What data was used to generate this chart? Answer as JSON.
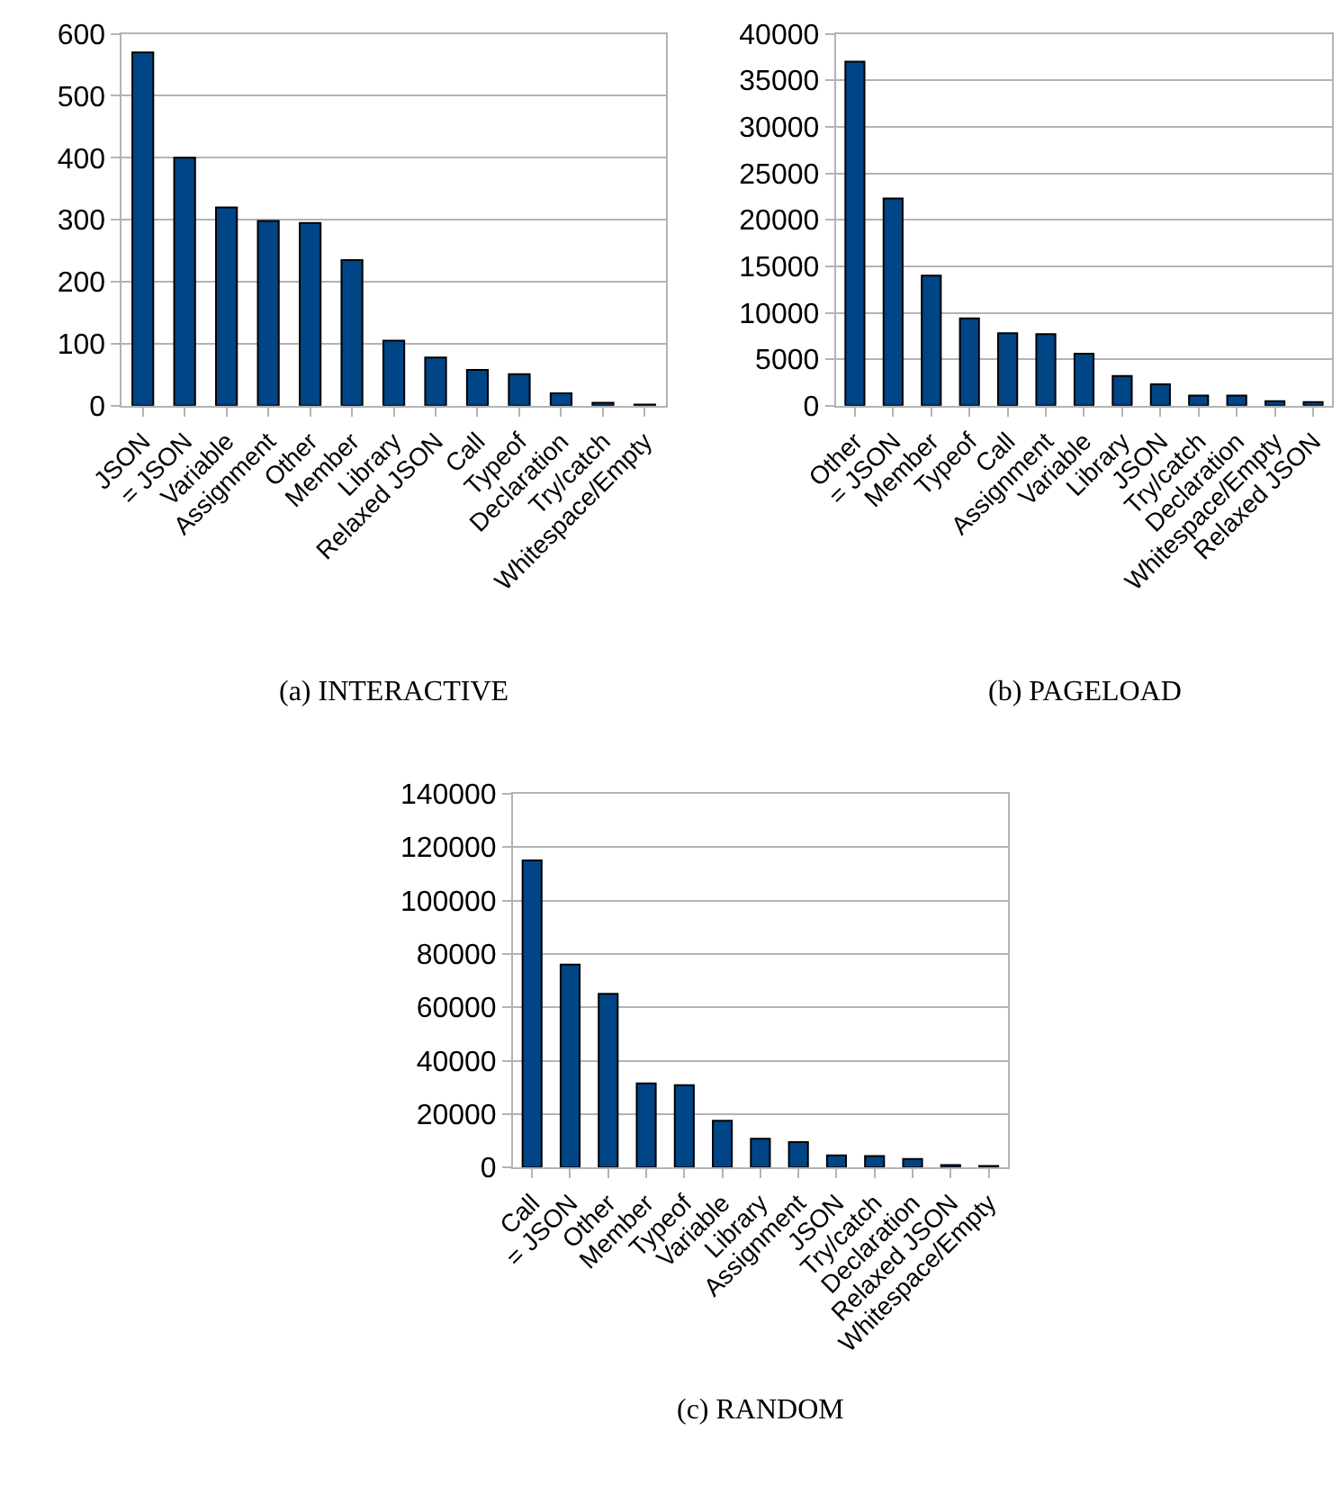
{
  "chart_data": [
    {
      "type": "bar",
      "title": "(a) INTERACTIVE",
      "categories": [
        "JSON",
        "= JSON",
        "Variable",
        "Assignment",
        "Other",
        "Member",
        "Library",
        "Relaxed JSON",
        "Call",
        "Typeof",
        "Declaration",
        "Try/catch",
        "Whitespace/Empty"
      ],
      "values": [
        570,
        400,
        320,
        298,
        295,
        235,
        105,
        78,
        58,
        51,
        20,
        5,
        2
      ],
      "color": "#004586",
      "ylim": [
        0,
        600
      ],
      "yticks": [
        0,
        100,
        200,
        300,
        400,
        500,
        600
      ],
      "grid": "y"
    },
    {
      "type": "bar",
      "title": "(b) PAGELOAD",
      "categories": [
        "Other",
        "= JSON",
        "Member",
        "Typeof",
        "Call",
        "Assignment",
        "Variable",
        "Library",
        "JSON",
        "Try/catch",
        "Declaration",
        "Whitespace/Empty",
        "Relaxed JSON"
      ],
      "values": [
        37000,
        22300,
        14000,
        9400,
        7800,
        7700,
        5600,
        3200,
        2300,
        1100,
        1100,
        500,
        400
      ],
      "color": "#004586",
      "ylim": [
        0,
        40000
      ],
      "yticks": [
        0,
        5000,
        10000,
        15000,
        20000,
        25000,
        30000,
        35000,
        40000
      ],
      "grid": "y"
    },
    {
      "type": "bar",
      "title": "(c) RANDOM",
      "categories": [
        "Call",
        "= JSON",
        "Other",
        "Member",
        "Typeof",
        "Variable",
        "Library",
        "Assignment",
        "JSON",
        "Try/catch",
        "Declaration",
        "Relaxed JSON",
        "Whitespace/Empty"
      ],
      "values": [
        115000,
        76000,
        65000,
        31500,
        30800,
        17500,
        10800,
        9500,
        4500,
        4300,
        3200,
        900,
        600
      ],
      "color": "#004586",
      "ylim": [
        0,
        140000
      ],
      "yticks": [
        0,
        20000,
        40000,
        60000,
        80000,
        100000,
        120000,
        140000
      ],
      "grid": "y"
    }
  ]
}
